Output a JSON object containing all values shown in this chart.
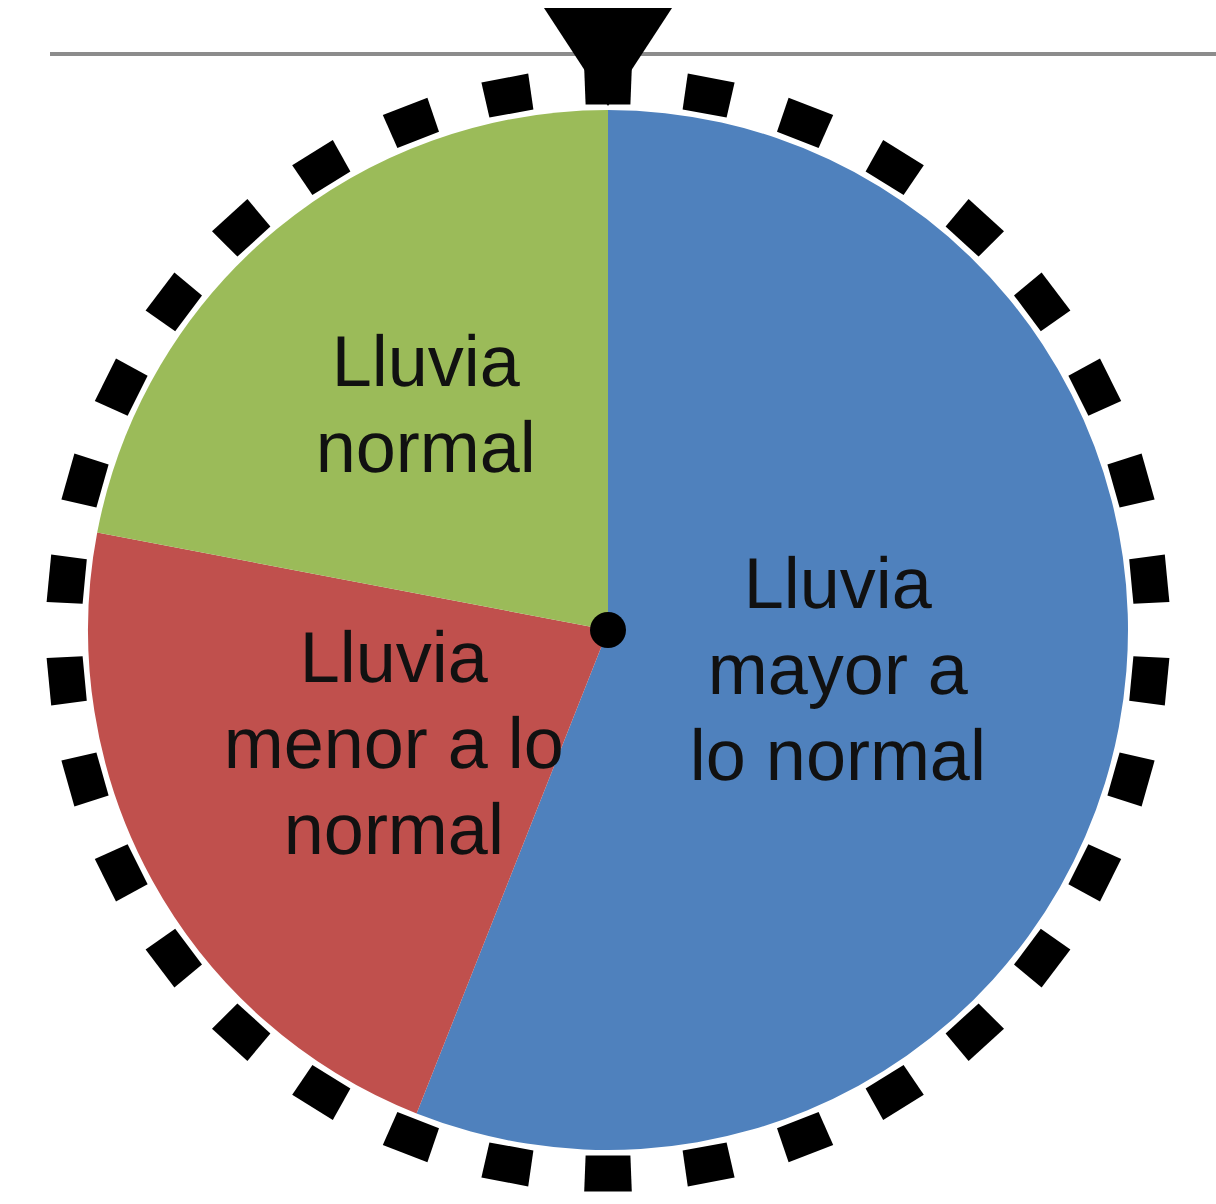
{
  "chart_data": {
    "type": "pie",
    "categories": [
      "Lluvia mayor a lo normal",
      "Lluvia menor a lo normal",
      "Lluvia normal"
    ],
    "values": [
      56,
      22,
      22
    ],
    "colors": [
      "#4f81bd",
      "#c0504d",
      "#9bbb59"
    ]
  }
}
